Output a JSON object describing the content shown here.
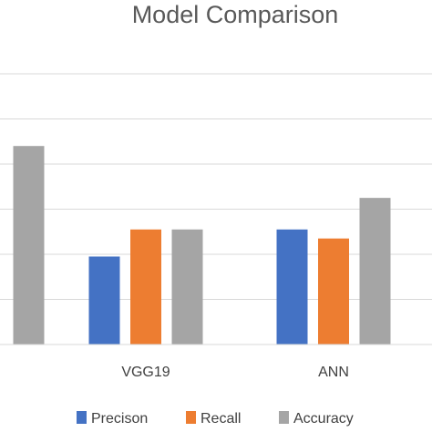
{
  "chart_data": {
    "type": "bar",
    "title": "Model Comparison",
    "categories": [
      "",
      "VGG19",
      "ANN"
    ],
    "category_labels_visible": [
      "",
      "VGG19",
      "ANN"
    ],
    "series": [
      {
        "name": "Precison",
        "color": "#4472C4",
        "values": [
          null,
          1.95,
          2.55
        ]
      },
      {
        "name": "Recall",
        "color": "#ED7D31",
        "values": [
          null,
          2.55,
          2.35
        ]
      },
      {
        "name": "Accuracy",
        "color": "#A5A5A5",
        "values": [
          4.4,
          2.55,
          3.25
        ]
      }
    ],
    "ylim": [
      0,
      6
    ],
    "grid": true,
    "legend_position": "bottom",
    "xlabel": "",
    "ylabel": ""
  }
}
